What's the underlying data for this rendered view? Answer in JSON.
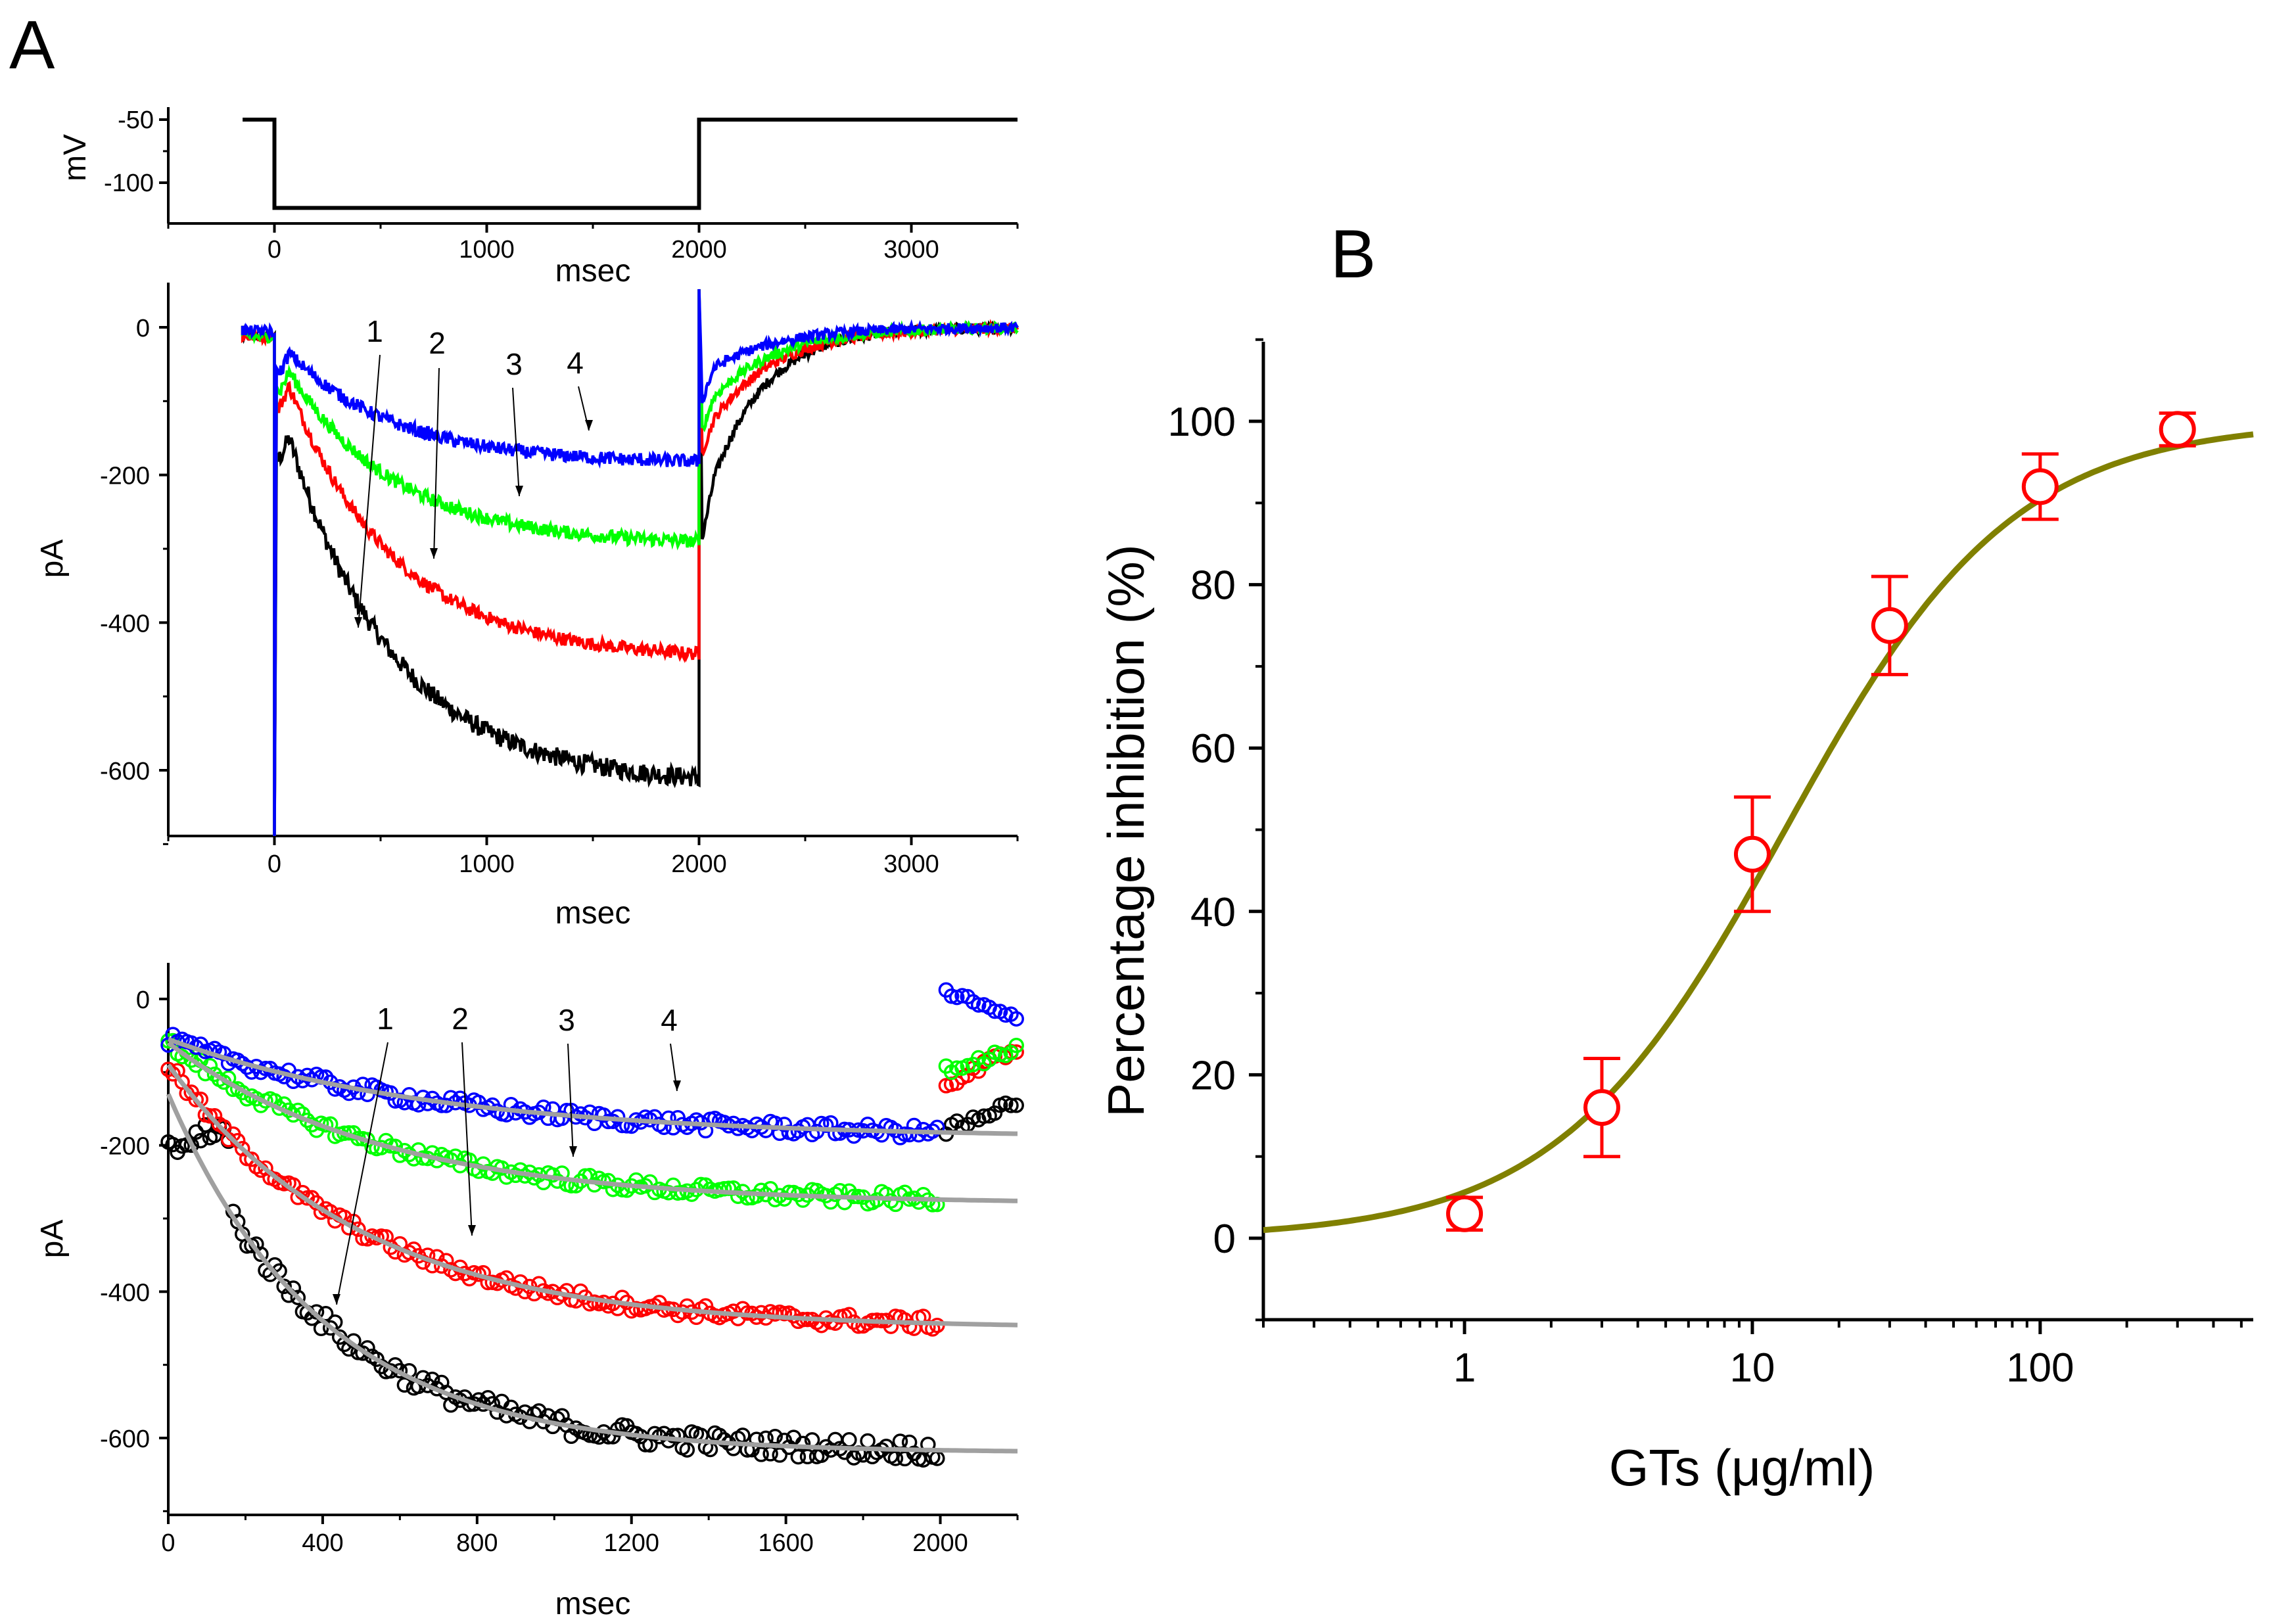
{
  "panel_labels": {
    "a": "A",
    "b": "B"
  },
  "chart_data": [
    {
      "id": "A-protocol",
      "type": "line",
      "xlabel": "msec",
      "ylabel": "mV",
      "xlim": [
        -500,
        3500
      ],
      "ylim": [
        -135,
        -35
      ],
      "xticks": [
        "0",
        "1000",
        "2000",
        "3000"
      ],
      "yticks": [
        "-50",
        "-100"
      ],
      "series": [
        {
          "name": "voltage step",
          "color": "#000000",
          "x": [
            -150,
            0,
            0,
            2000,
            2000,
            3500
          ],
          "y": [
            -50,
            -50,
            -120,
            -120,
            -50,
            -50
          ]
        }
      ]
    },
    {
      "id": "A-currents",
      "type": "line",
      "xlabel": "msec",
      "ylabel": "pA",
      "xlim": [
        -500,
        3500
      ],
      "ylim": [
        -700,
        40
      ],
      "xticks": [
        "0",
        "1000",
        "2000",
        "3000"
      ],
      "yticks": [
        "0",
        "-200",
        "-400",
        "-600"
      ],
      "trace_labels": [
        "1",
        "2",
        "3",
        "4"
      ],
      "series": [
        {
          "name": "1",
          "color": "#000000",
          "steady": -620,
          "peak": -150,
          "tail": -205
        },
        {
          "name": "2",
          "color": "#ff0000",
          "steady": -450,
          "peak": -80,
          "tail": -125
        },
        {
          "name": "3",
          "color": "#00ff00",
          "steady": -295,
          "peak": -60,
          "tail": -95
        },
        {
          "name": "4",
          "color": "#0000ff",
          "steady": -185,
          "peak": -35,
          "tail": -55
        }
      ]
    },
    {
      "id": "A-fits",
      "type": "scatter",
      "xlabel": "msec",
      "ylabel": "pA",
      "xlim": [
        0,
        2200
      ],
      "ylim": [
        -700,
        40
      ],
      "xticks": [
        "0",
        "400",
        "800",
        "1200",
        "1600",
        "2000"
      ],
      "yticks": [
        "0",
        "-200",
        "-400",
        "-600"
      ],
      "trace_labels": [
        "1",
        "2",
        "3",
        "4"
      ],
      "fit_color": "#a0a0a0",
      "series": [
        {
          "name": "1",
          "color": "#000000",
          "fit_start": -130,
          "fit_end": -620,
          "tau": 400
        },
        {
          "name": "2",
          "color": "#ff0000",
          "fit_start": -90,
          "fit_end": -450,
          "tau": 500
        },
        {
          "name": "3",
          "color": "#00ff00",
          "fit_start": -60,
          "fit_end": -280,
          "tau": 550
        },
        {
          "name": "4",
          "color": "#0000ff",
          "fit_start": -55,
          "fit_end": -190,
          "tau": 700
        }
      ]
    },
    {
      "id": "B-dose-response",
      "type": "scatter",
      "xscale": "log",
      "xlabel": "GTs (μg/ml)",
      "ylabel": "Percentage inhibition (%)",
      "xlim": [
        0.2,
        550
      ],
      "ylim": [
        -10,
        110
      ],
      "xticks": [
        "1",
        "10",
        "100"
      ],
      "yticks": [
        "0",
        "20",
        "40",
        "60",
        "80",
        "100"
      ],
      "marker_color": "#ff0000",
      "fit_color": "#808000",
      "x": [
        1,
        3,
        10,
        30,
        100,
        300
      ],
      "y": [
        3,
        16,
        47,
        75,
        92,
        99
      ],
      "yerr": [
        2,
        6,
        7,
        6,
        4,
        2
      ],
      "fit": {
        "model": "hill",
        "ic50": 13,
        "n": 1.1
      }
    }
  ]
}
